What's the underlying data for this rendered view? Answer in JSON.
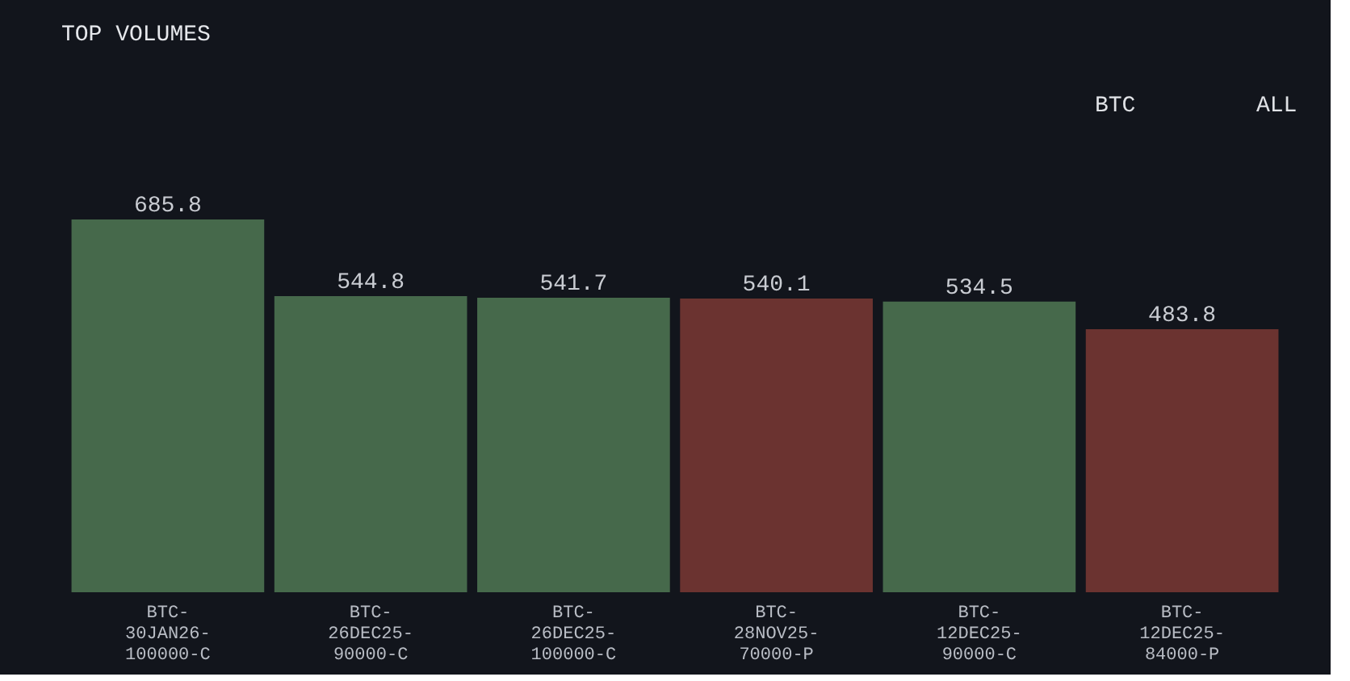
{
  "chart_data": {
    "type": "bar",
    "title": "TOP VOLUMES",
    "categories": [
      "BTC-30JAN26-100000-C",
      "BTC-26DEC25-90000-C",
      "BTC-26DEC25-100000-C",
      "BTC-28NOV25-70000-P",
      "BTC-12DEC25-90000-C",
      "BTC-12DEC25-84000-P"
    ],
    "values": [
      685.8,
      544.8,
      541.7,
      540.1,
      534.5,
      483.8
    ],
    "colors": [
      "#46694b",
      "#46694b",
      "#46694b",
      "#6b3330",
      "#46694b",
      "#6b3330"
    ],
    "data_labels": true,
    "annotations": [
      "BTC",
      "ALL"
    ]
  }
}
